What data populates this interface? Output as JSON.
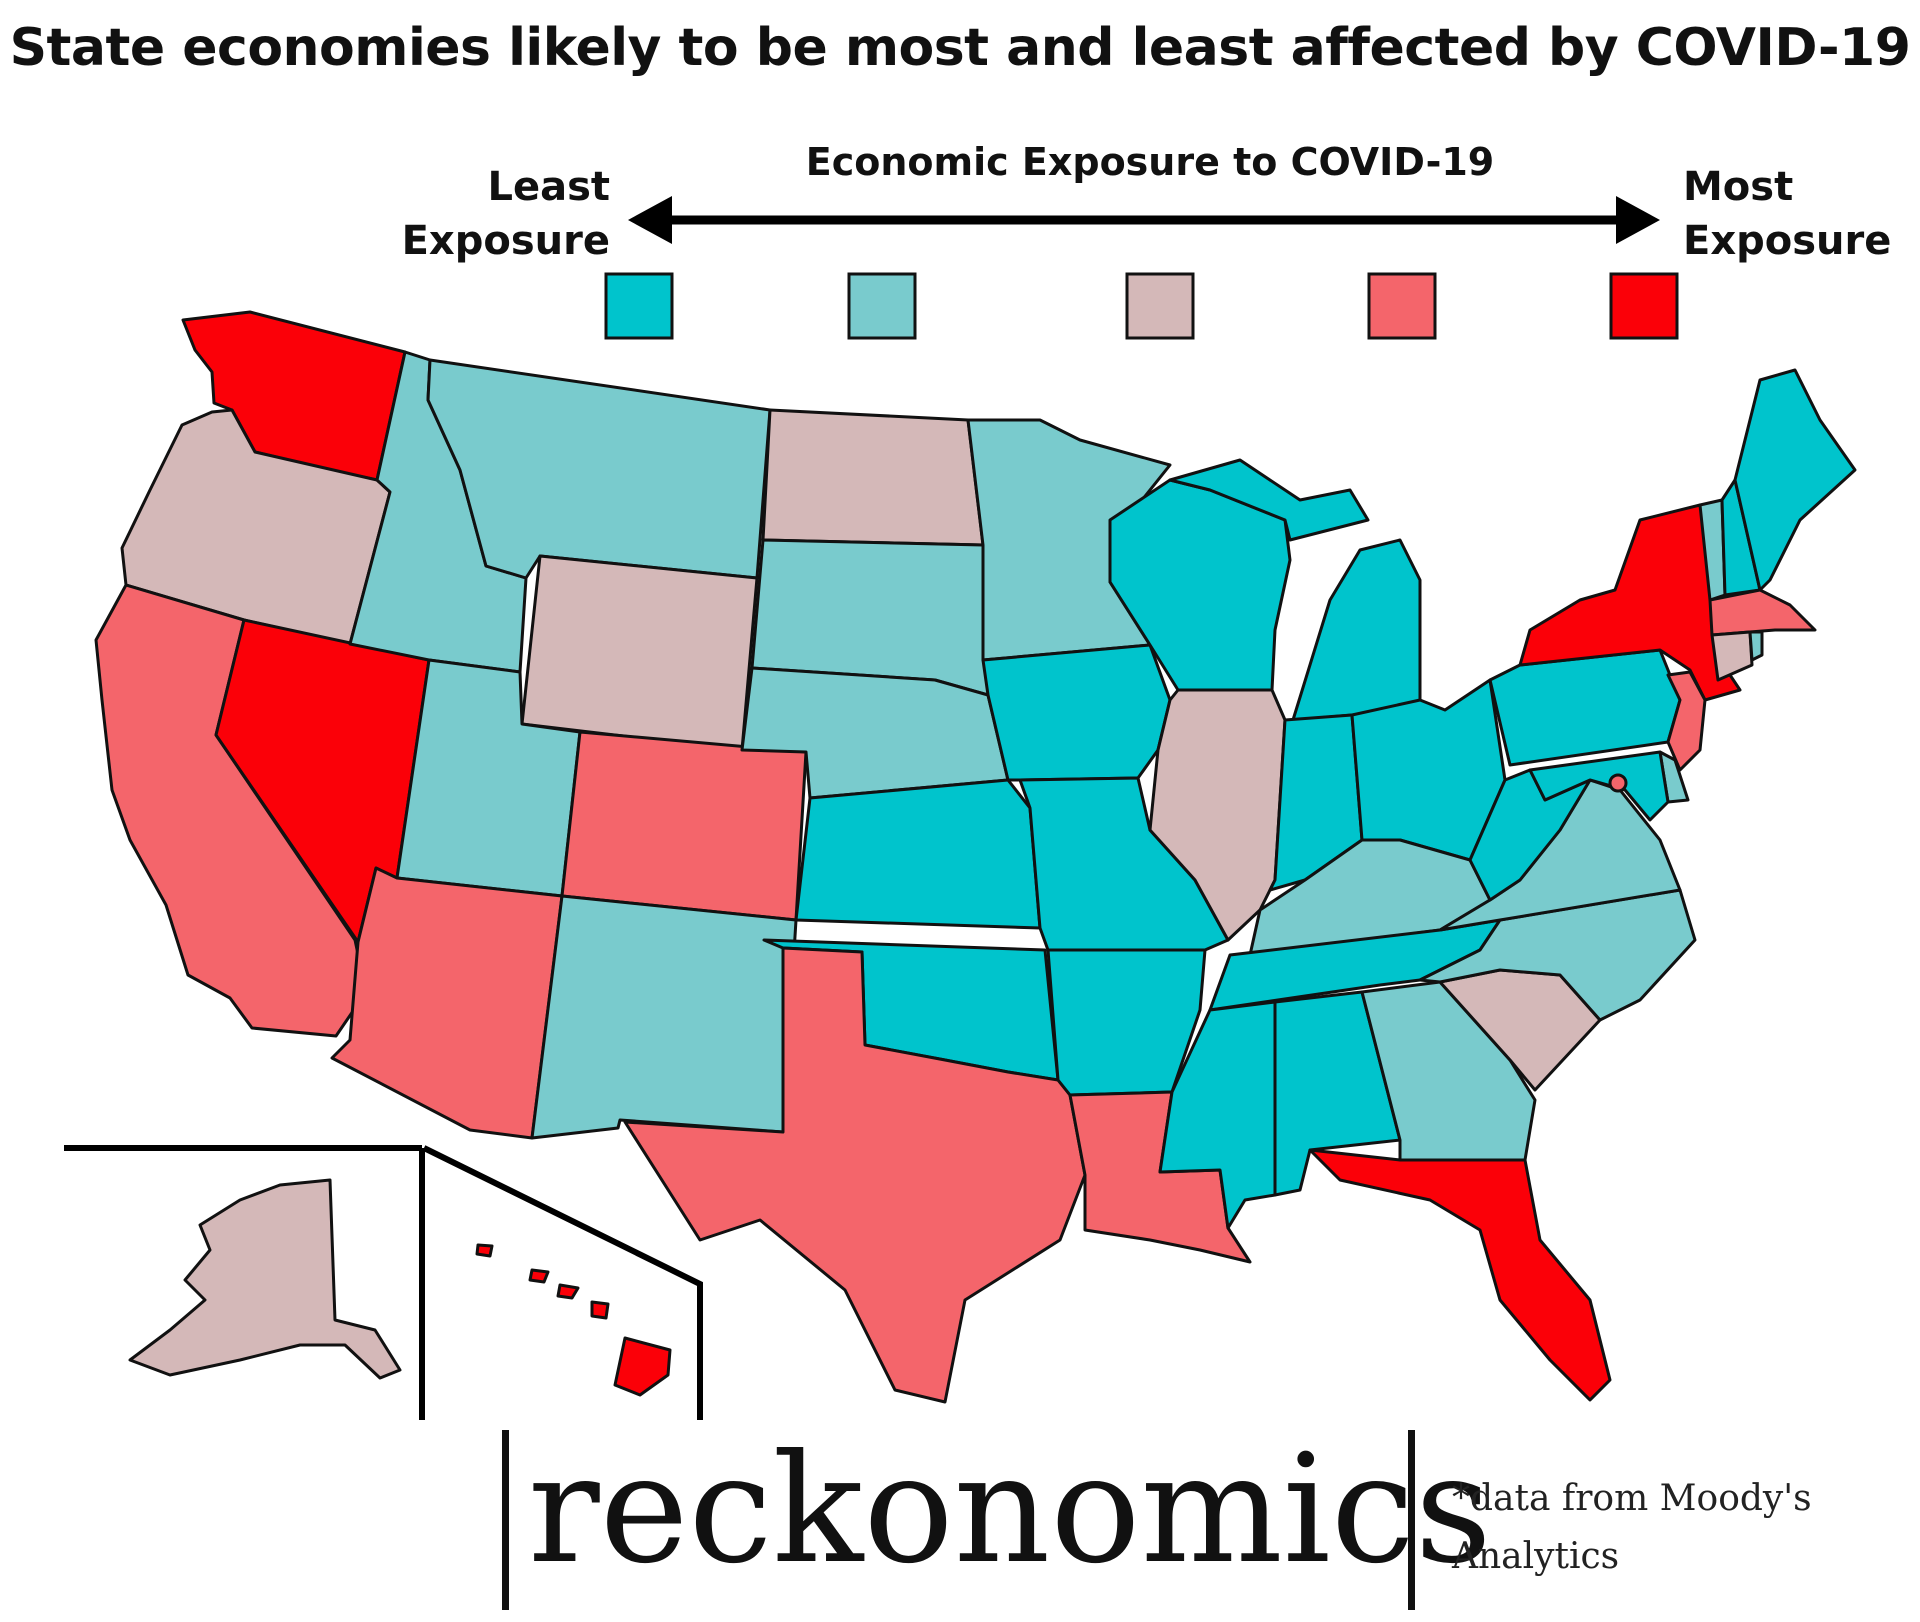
{
  "title": "State economies likely to be most and least affected by COVID-19",
  "legend": {
    "axis_title": "Economic Exposure to COVID-19",
    "least_label": "Least Exposure",
    "most_label": "Most Exposure",
    "least_line1": "Least",
    "least_line2": "Exposure",
    "most_line1": "Most",
    "most_line2": "Exposure",
    "colors": [
      "#00c4cc",
      "#79cbcd",
      "#d4b8b8",
      "#f4656b",
      "#fb0008"
    ]
  },
  "branding": {
    "logo_text": "reckonomics",
    "source_line1": "*data from Moody's",
    "source_line2": "Analytics"
  },
  "map": {
    "type": "choropleth",
    "scale_levels": 5,
    "states": [
      {
        "code": "WA",
        "level": 5
      },
      {
        "code": "OR",
        "level": 3
      },
      {
        "code": "CA",
        "level": 4
      },
      {
        "code": "NV",
        "level": 5
      },
      {
        "code": "ID",
        "level": 2
      },
      {
        "code": "MT",
        "level": 2
      },
      {
        "code": "WY",
        "level": 3
      },
      {
        "code": "UT",
        "level": 2
      },
      {
        "code": "CO",
        "level": 4
      },
      {
        "code": "AZ",
        "level": 4
      },
      {
        "code": "NM",
        "level": 2
      },
      {
        "code": "ND",
        "level": 3
      },
      {
        "code": "SD",
        "level": 2
      },
      {
        "code": "NE",
        "level": 2
      },
      {
        "code": "KS",
        "level": 1
      },
      {
        "code": "OK",
        "level": 1
      },
      {
        "code": "TX",
        "level": 4
      },
      {
        "code": "MN",
        "level": 2
      },
      {
        "code": "IA",
        "level": 1
      },
      {
        "code": "MO",
        "level": 1
      },
      {
        "code": "AR",
        "level": 1
      },
      {
        "code": "LA",
        "level": 4
      },
      {
        "code": "WI",
        "level": 1
      },
      {
        "code": "IL",
        "level": 3
      },
      {
        "code": "MI",
        "level": 1
      },
      {
        "code": "IN",
        "level": 1
      },
      {
        "code": "OH",
        "level": 1
      },
      {
        "code": "KY",
        "level": 2
      },
      {
        "code": "TN",
        "level": 1
      },
      {
        "code": "MS",
        "level": 1
      },
      {
        "code": "AL",
        "level": 1
      },
      {
        "code": "GA",
        "level": 2
      },
      {
        "code": "FL",
        "level": 5
      },
      {
        "code": "SC",
        "level": 3
      },
      {
        "code": "NC",
        "level": 2
      },
      {
        "code": "VA",
        "level": 2
      },
      {
        "code": "WV",
        "level": 1
      },
      {
        "code": "PA",
        "level": 1
      },
      {
        "code": "NY",
        "level": 5
      },
      {
        "code": "VT",
        "level": 2
      },
      {
        "code": "NH",
        "level": 1
      },
      {
        "code": "ME",
        "level": 1
      },
      {
        "code": "MA",
        "level": 4
      },
      {
        "code": "RI",
        "level": 2
      },
      {
        "code": "CT",
        "level": 3
      },
      {
        "code": "NJ",
        "level": 4
      },
      {
        "code": "DE",
        "level": 2
      },
      {
        "code": "MD",
        "level": 1
      },
      {
        "code": "DC",
        "level": 4
      },
      {
        "code": "AK",
        "level": 3
      },
      {
        "code": "HI",
        "level": 5
      }
    ]
  }
}
